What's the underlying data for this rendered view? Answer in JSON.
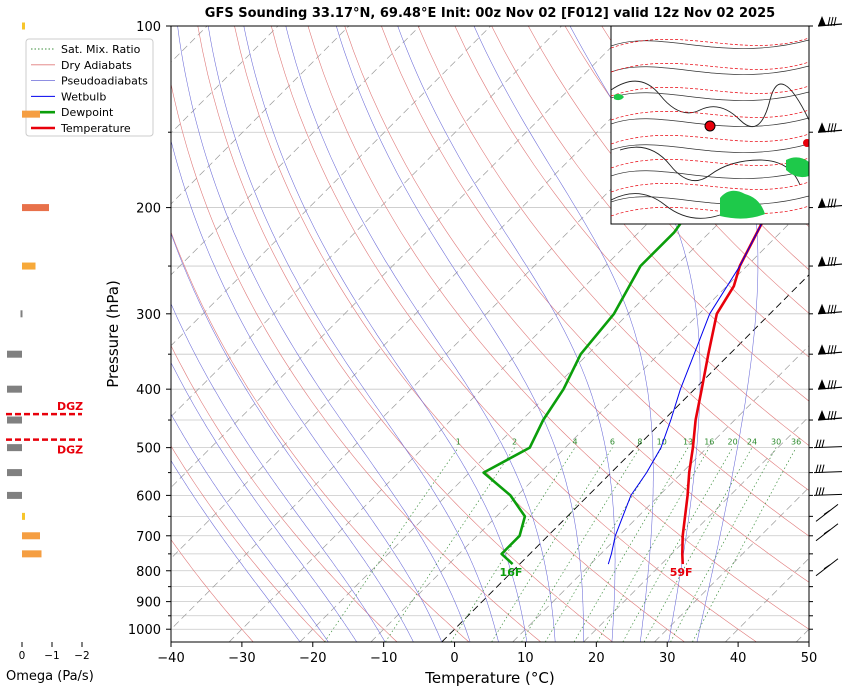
{
  "title": "GFS Sounding 33.17°N, 69.48°E Init: 00z Nov 02 [F012] valid 12z Nov 02 2025",
  "chart_data": {
    "type": "line",
    "xlabel": "Temperature (°C)",
    "ylabel": "Pressure (hPa)",
    "xlim": [
      -40,
      50
    ],
    "ylim": [
      1050,
      100
    ],
    "x_ticks": [
      "−40",
      "−30",
      "−20",
      "−10",
      "0",
      "10",
      "20",
      "30",
      "40",
      "50"
    ],
    "p_tick_values": [
      100,
      200,
      300,
      400,
      500,
      600,
      700,
      800,
      900,
      1000
    ],
    "p_ticks": [
      "100",
      "200",
      "300",
      "400",
      "500",
      "600",
      "700",
      "800",
      "900",
      "1000"
    ],
    "legend": {
      "placement": "upper-left",
      "entries": [
        "Sat. Mix. Ratio",
        "Dry Adiabats",
        "Pseudoadiabats",
        "Wetbulb",
        "Dewpoint",
        "Temperature"
      ]
    },
    "series": [
      {
        "name": "Temperature",
        "color": "#e8000b",
        "points": [
          [
            23,
            780
          ],
          [
            21.5,
            750
          ],
          [
            19,
            700
          ],
          [
            14,
            600
          ],
          [
            11,
            550
          ],
          [
            8,
            500
          ],
          [
            4.5,
            450
          ],
          [
            1,
            400
          ],
          [
            -3,
            350
          ],
          [
            -7.5,
            300
          ],
          [
            -9,
            270
          ],
          [
            -11,
            250
          ],
          [
            -15,
            200
          ],
          [
            -16,
            175
          ],
          [
            -19,
            150
          ],
          [
            -20,
            130
          ],
          [
            -20.5,
            115
          ],
          [
            -21,
            100
          ]
        ]
      },
      {
        "name": "Dewpoint",
        "color": "#0b9e0b",
        "points": [
          [
            -1,
            780
          ],
          [
            -4,
            750
          ],
          [
            -4,
            700
          ],
          [
            -6,
            650
          ],
          [
            -11,
            600
          ],
          [
            -18,
            550
          ],
          [
            -15,
            500
          ],
          [
            -17,
            450
          ],
          [
            -18.5,
            400
          ],
          [
            -21,
            350
          ],
          [
            -22,
            300
          ],
          [
            -25,
            250
          ],
          [
            -25,
            220
          ],
          [
            -26,
            200
          ],
          [
            -29,
            175
          ],
          [
            -30,
            150
          ],
          [
            -26,
            100
          ]
        ]
      },
      {
        "name": "Wetbulb",
        "color": "#0000ee",
        "points": [
          [
            12.5,
            780
          ],
          [
            11.5,
            750
          ],
          [
            9.5,
            700
          ],
          [
            6,
            600
          ],
          [
            5,
            550
          ],
          [
            3.5,
            500
          ],
          [
            1,
            450
          ],
          [
            -2,
            400
          ],
          [
            -5,
            350
          ],
          [
            -8.5,
            300
          ],
          [
            -11,
            250
          ],
          [
            -15,
            200
          ],
          [
            -16.5,
            175
          ],
          [
            -19,
            150
          ],
          [
            -20,
            130
          ],
          [
            -20.5,
            115
          ],
          [
            -21,
            100
          ]
        ]
      }
    ],
    "mixing_ratio_labels": [
      "1",
      "2",
      "4",
      "6",
      "8",
      "10",
      "13",
      "16",
      "20",
      "24",
      "30",
      "36"
    ],
    "mixing_ratio_values": [
      1,
      2,
      4,
      6,
      8,
      10,
      13,
      16,
      20,
      24,
      30,
      36
    ],
    "surface_labels": {
      "temperature": "59F",
      "dewpoint": "16F"
    }
  },
  "omega": {
    "label": "Omega (Pa/s)",
    "ticks": [
      "0",
      "−1",
      "−2"
    ],
    "dgz_label": "DGZ",
    "bars": [
      {
        "p": 100,
        "value": -0.1,
        "color": "#f7c52b"
      },
      {
        "p": 140,
        "value": -0.6,
        "color": "#f59e42"
      },
      {
        "p": 200,
        "value": -0.9,
        "color": "#e8714a"
      },
      {
        "p": 250,
        "value": -0.45,
        "color": "#f7a93a"
      },
      {
        "p": 300,
        "value": 0.05,
        "color": "#808080"
      },
      {
        "p": 350,
        "value": 0.5,
        "color": "#808080"
      },
      {
        "p": 400,
        "value": 0.5,
        "color": "#808080"
      },
      {
        "p": 450,
        "value": 0.5,
        "color": "#808080"
      },
      {
        "p": 500,
        "value": 0.5,
        "color": "#808080"
      },
      {
        "p": 550,
        "value": 0.5,
        "color": "#808080"
      },
      {
        "p": 600,
        "value": 0.5,
        "color": "#808080"
      },
      {
        "p": 650,
        "value": -0.1,
        "color": "#f7c52b"
      },
      {
        "p": 700,
        "value": -0.6,
        "color": "#f59e42"
      },
      {
        "p": 750,
        "value": -0.65,
        "color": "#f59e42"
      }
    ],
    "dgz_pressures": [
      440,
      485
    ]
  }
}
